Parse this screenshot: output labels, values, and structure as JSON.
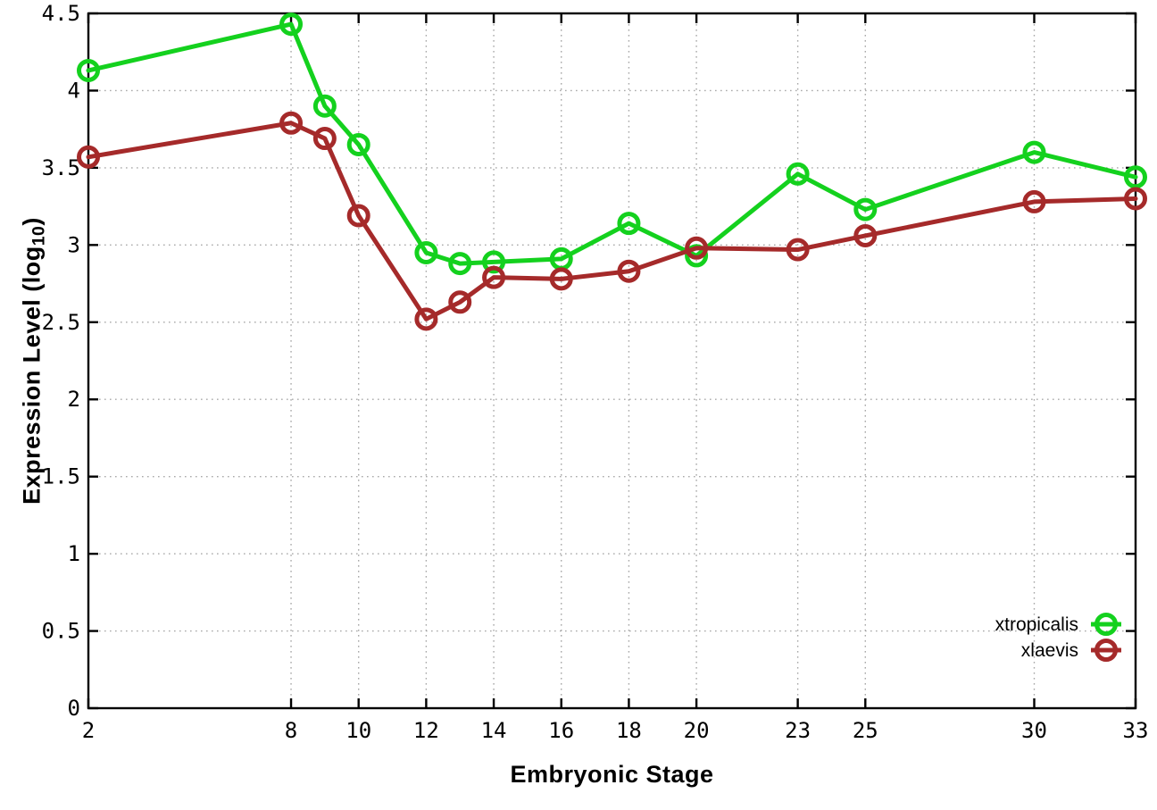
{
  "chart_data": {
    "type": "line",
    "title": "",
    "xlabel": "Embryonic Stage",
    "ylabel_parts": {
      "prefix": "Expression Level (log",
      "sub": "10",
      "suffix": ")"
    },
    "x": [
      2,
      8,
      9,
      10,
      12,
      13,
      14,
      16,
      18,
      20,
      23,
      25,
      30,
      33
    ],
    "xlim": [
      2,
      33
    ],
    "ylim": [
      0,
      4.5
    ],
    "x_ticks": {
      "values": [
        2,
        8,
        10,
        12,
        14,
        16,
        18,
        20,
        23,
        25,
        30,
        33
      ],
      "labels": [
        "2",
        "8",
        "10",
        "12",
        "14",
        "16",
        "18",
        "20",
        "23",
        "25",
        "30",
        "33"
      ]
    },
    "y_ticks": {
      "values": [
        0,
        0.5,
        1,
        1.5,
        2,
        2.5,
        3,
        3.5,
        4,
        4.5
      ],
      "labels": [
        "0",
        "0.5",
        "1",
        "1.5",
        "2",
        "2.5",
        "3",
        "3.5",
        "4",
        "4.5"
      ]
    },
    "grid": true,
    "grid_style": "dotted",
    "legend_position": "inside-bottom-right",
    "series": [
      {
        "name": "xtropicalis",
        "color": "#14d11e",
        "marker": "open-circle",
        "values": [
          4.13,
          4.43,
          3.9,
          3.65,
          2.95,
          2.88,
          2.89,
          2.91,
          3.14,
          2.93,
          3.46,
          3.23,
          3.6,
          3.44
        ]
      },
      {
        "name": "xlaevis",
        "color": "#a52a2a",
        "marker": "open-circle",
        "values": [
          3.57,
          3.79,
          3.69,
          3.19,
          2.52,
          2.63,
          2.79,
          2.78,
          2.83,
          2.98,
          2.97,
          3.06,
          3.28,
          3.3
        ]
      }
    ],
    "colors": {
      "background": "#ffffff",
      "axis": "#000000",
      "grid": "#a8a8a8",
      "text": "#000000"
    }
  }
}
